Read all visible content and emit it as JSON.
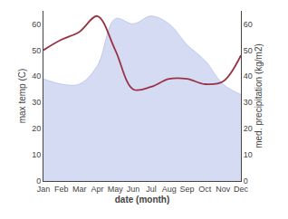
{
  "chart_data": {
    "type": "line",
    "xlabel": "date (month)",
    "ylabel": "max temp (C)",
    "y2label": "med. precipitation (kg/m2)",
    "categories": [
      "Jan",
      "Feb",
      "Mar",
      "Apr",
      "May",
      "Jun",
      "Jul",
      "Aug",
      "Sep",
      "Oct",
      "Nov",
      "Dec"
    ],
    "series": [
      {
        "type": "area",
        "color": "#c0c8ee",
        "values": [
          39,
          37,
          37,
          44,
          62,
          60,
          63,
          60,
          52,
          46,
          37,
          33
        ]
      },
      {
        "type": "line",
        "color": "#993344",
        "axis": "y2",
        "values": [
          50,
          54,
          57,
          63,
          50,
          35,
          36,
          39,
          39,
          37,
          38,
          48
        ]
      }
    ],
    "ylim": [
      0,
      65
    ],
    "yticks": [
      0,
      10,
      20,
      30,
      40,
      50,
      60
    ],
    "y2lim": [
      0,
      65
    ],
    "y2ticks": [
      0,
      10,
      20,
      30,
      40,
      50,
      60
    ],
    "grid": false
  }
}
